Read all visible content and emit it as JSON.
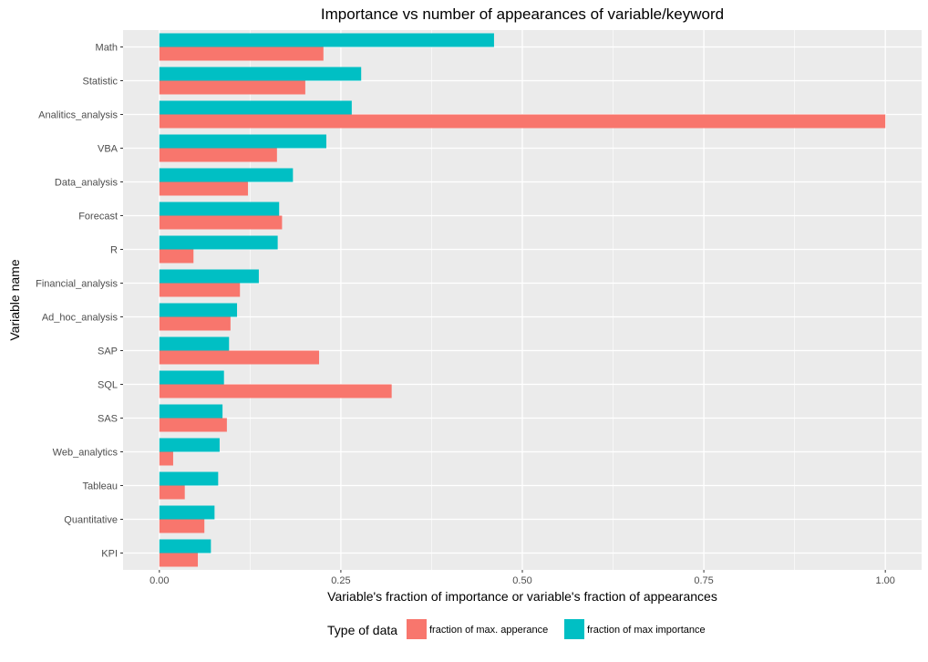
{
  "chart_data": {
    "type": "bar",
    "orientation": "horizontal",
    "title": "Importance vs number of appearances of variable/keyword",
    "xlabel": "Variable's fraction of importance or variable's fraction of appearances",
    "ylabel": "Variable name",
    "xlim": [
      -0.05,
      1.05
    ],
    "x_ticks": [
      "0.00",
      "0.25",
      "0.50",
      "0.75",
      "1.00"
    ],
    "x_tick_values": [
      0,
      0.25,
      0.5,
      0.75,
      1.0
    ],
    "grid": true,
    "legend_position": "bottom",
    "categories": [
      "Math",
      "Statistic",
      "Analitics_analysis",
      "VBA",
      "Data_analysis",
      "Forecast",
      "R",
      "Financial_analysis",
      "Ad_hoc_analysis",
      "SAP",
      "SQL",
      "SAS",
      "Web_analytics",
      "Tableau",
      "Quantitative",
      "KPI"
    ],
    "series": [
      {
        "name": "fraction of max. apperance",
        "color": "#F8766D",
        "values": [
          0.226,
          0.201,
          1.0,
          0.162,
          0.122,
          0.169,
          0.047,
          0.111,
          0.098,
          0.22,
          0.32,
          0.093,
          0.019,
          0.035,
          0.062,
          0.053
        ]
      },
      {
        "name": "fraction of max importance",
        "color": "#00BFC4",
        "values": [
          0.461,
          0.278,
          0.265,
          0.23,
          0.184,
          0.165,
          0.163,
          0.137,
          0.107,
          0.096,
          0.089,
          0.087,
          0.083,
          0.081,
          0.076,
          0.071
        ]
      }
    ]
  },
  "legend": {
    "title": "Type of data"
  }
}
